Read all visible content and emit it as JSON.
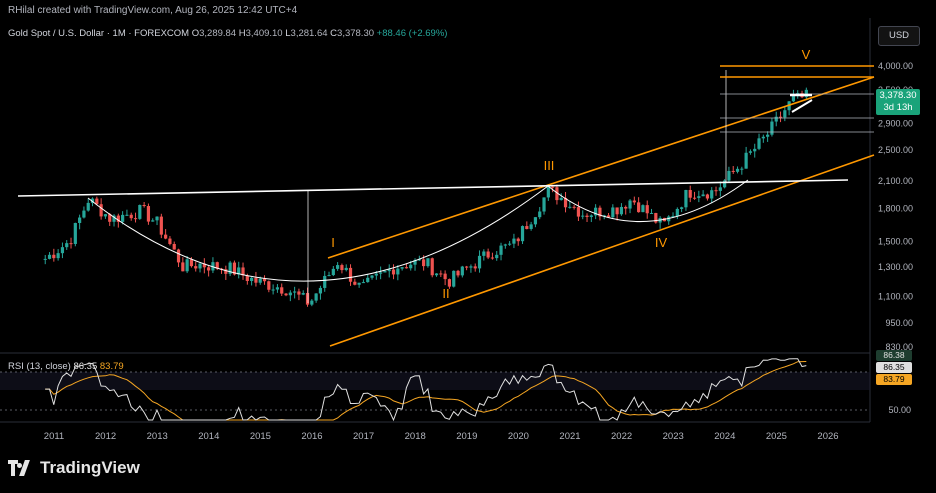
{
  "header": {
    "credit": "RHilal created with TradingView.com, Aug 26, 2025 12:42 UTC+4",
    "symbol": "Gold Spot / U.S. Dollar · 1M · FOREXCOM",
    "ohlc": {
      "o_label": "O",
      "o": "3,289.84",
      "h_label": "H",
      "h": "3,409.10",
      "l_label": "L",
      "l": "3,281.64",
      "c_label": "C",
      "c": "3,378.30",
      "change": "+88.46 (+2.69%)"
    },
    "currency": "USD"
  },
  "price_axis": {
    "labels": [
      "4,000.00",
      "3,500.00",
      "2,900.00",
      "2,500.00",
      "2,100.00",
      "1,800.00",
      "1,500.00",
      "1,300.00",
      "1,100.00",
      "950.00",
      "830.00"
    ]
  },
  "price_tag": {
    "value": "3,378.30",
    "countdown": "3d 13h",
    "color": "#1aa37a"
  },
  "rsi": {
    "label": "RSI (13, close)",
    "value": "86.35",
    "ma": "83.79",
    "axis": [
      "86.38",
      "86.35",
      "83.79",
      "50.00"
    ]
  },
  "time_axis": [
    "2011",
    "2012",
    "2013",
    "2014",
    "2015",
    "2016",
    "2017",
    "2018",
    "2019",
    "2020",
    "2021",
    "2022",
    "2023",
    "2024",
    "2025",
    "2026"
  ],
  "wave_labels": [
    "I",
    "II",
    "III",
    "IV",
    "V"
  ],
  "brand": "TradingView",
  "colors": {
    "up": "#26a69a",
    "down": "#ef5350",
    "orange": "#ff9800",
    "rsi": "#e0e0e0",
    "rsi_ma": "#f5a623"
  },
  "chart_data": {
    "type": "candlestick",
    "interval": "1M",
    "scale": "log",
    "ylim": [
      830,
      4200
    ],
    "x_range": [
      2010.75,
      2026.6
    ],
    "series": [
      {
        "x": [
          2010.83,
          2011.3,
          2011.67,
          2012.1,
          2012.7,
          2013.0,
          2013.5,
          2013.8,
          2014.4,
          2014.9,
          2015.5,
          2015.95,
          2016.5,
          2016.95,
          2017.6,
          2017.95,
          2018.2,
          2018.65,
          2019.5,
          2019.9,
          2020.6,
          2021.0,
          2021.25,
          2021.9,
          2022.2,
          2022.8,
          2023.3,
          2023.8,
          2024.3,
          2024.8,
          2025.3,
          2025.62
        ],
        "y": [
          1360,
          1500,
          1900,
          1700,
          1780,
          1660,
          1300,
          1320,
          1290,
          1200,
          1150,
          1060,
          1340,
          1150,
          1300,
          1330,
          1330,
          1200,
          1420,
          1470,
          2000,
          1850,
          1750,
          1800,
          1900,
          1630,
          1980,
          1980,
          2300,
          2700,
          3300,
          3378
        ]
      }
    ],
    "annotations": [
      "I",
      "II",
      "III",
      "IV",
      "V"
    ],
    "rsi_period": 13
  }
}
